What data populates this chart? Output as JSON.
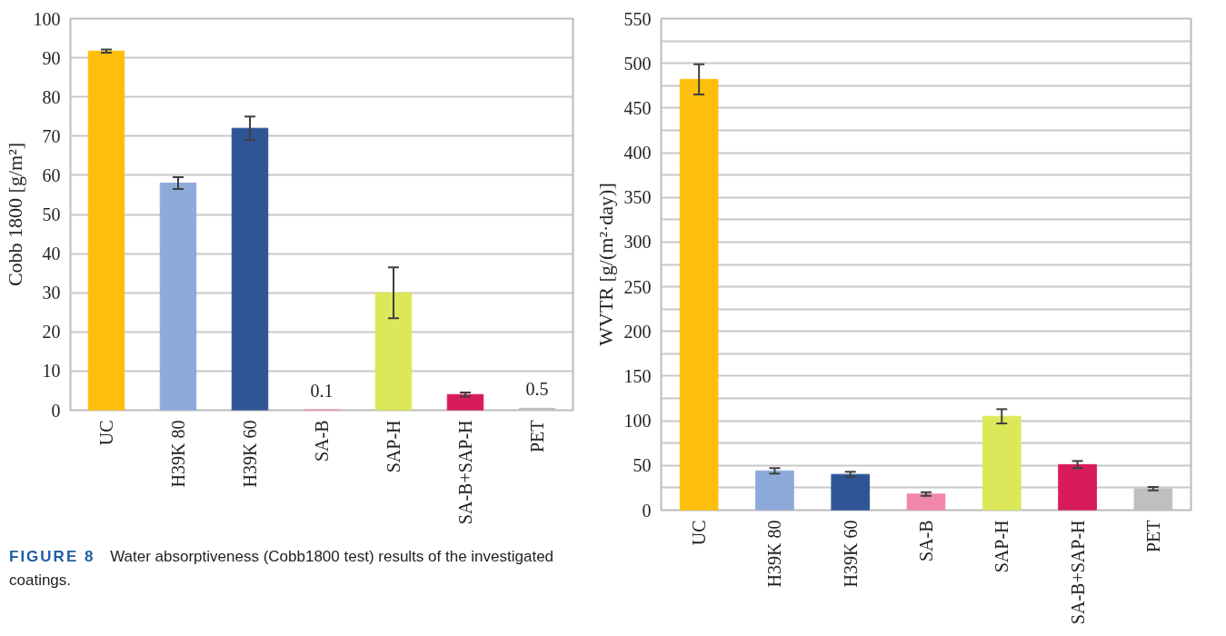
{
  "chart_data": [
    {
      "type": "bar",
      "ylabel": "Cobb 1800 [g/m²]",
      "categories": [
        "UC",
        "H39K 80",
        "H39K 60",
        "SA-B",
        "SAP-H",
        "SA-B+SAP-H",
        "PET"
      ],
      "values": [
        91.7,
        58,
        72,
        0.1,
        30,
        4,
        0.5
      ],
      "colors": [
        "#fdbf0b",
        "#8eaadb",
        "#2f5597",
        "#f087aa",
        "#dce85a",
        "#d81b5a",
        "#bfbfbf"
      ],
      "errors": [
        0.4,
        1.5,
        3,
        null,
        6.5,
        0.5,
        null
      ],
      "value_labels": [
        null,
        null,
        null,
        "0.1",
        null,
        null,
        "0.5"
      ],
      "ylim": [
        0,
        100
      ],
      "yticks": [
        0,
        10,
        20,
        30,
        40,
        50,
        60,
        70,
        80,
        90,
        100
      ],
      "grid": "y",
      "annotations": [
        "FIGURE 8",
        "Water absorptiveness (Cobb1800 test) results of the investigated coatings."
      ]
    },
    {
      "type": "bar",
      "ylabel": "WVTR [g/(m²·day)]",
      "categories": [
        "UC",
        "H39K 80",
        "H39K 60",
        "SA-B",
        "SAP-H",
        "SA-B+SAP-H",
        "PET"
      ],
      "values": [
        482,
        44,
        40,
        18,
        105,
        51,
        24
      ],
      "colors": [
        "#fdbf0b",
        "#8eaadb",
        "#2f5597",
        "#f087aa",
        "#dce85a",
        "#d81b5a",
        "#bfbfbf"
      ],
      "errors": [
        17,
        3,
        3,
        2,
        8,
        4,
        2
      ],
      "ylim": [
        0,
        550
      ],
      "yticks": [
        0,
        {
          "value": 25,
          "label": null
        },
        50,
        {
          "value": 75,
          "label": null
        },
        100,
        {
          "value": 125,
          "label": null
        },
        150,
        {
          "value": 175,
          "label": null
        },
        200,
        {
          "value": 225,
          "label": null
        },
        250,
        {
          "value": 275,
          "label": null
        },
        300,
        {
          "value": 325,
          "label": null
        },
        350,
        {
          "value": 375,
          "label": null
        },
        400,
        {
          "value": 425,
          "label": null
        },
        450,
        {
          "value": 475,
          "label": null
        },
        500,
        {
          "value": 525,
          "label": null
        },
        550
      ],
      "grid": "y"
    }
  ]
}
